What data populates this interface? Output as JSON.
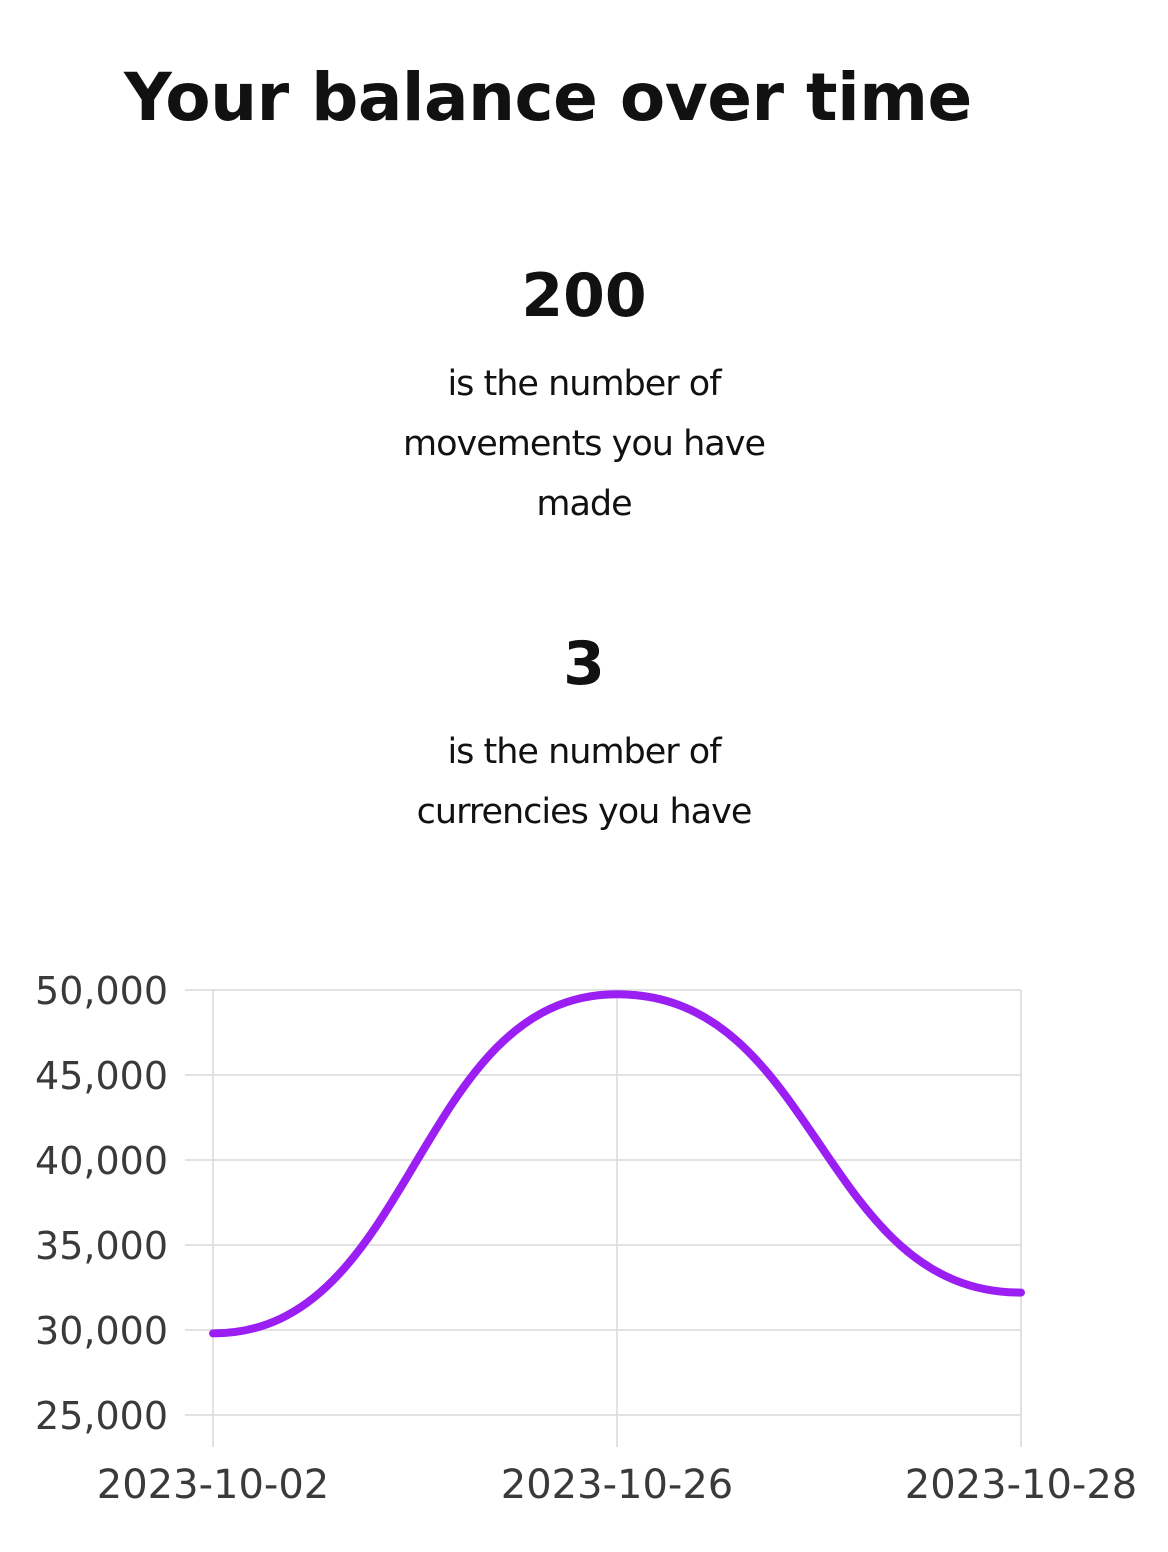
{
  "header": {
    "title": "Your balance over time"
  },
  "stats": [
    {
      "value": "200",
      "description": "is the number of movements you have made"
    },
    {
      "value": "3",
      "description": "is the number of currencies you have"
    }
  ],
  "colors": {
    "line": "#9b1ff2",
    "grid": "#d9d9d9",
    "text": "#111111"
  },
  "chart_data": {
    "type": "line",
    "title": "",
    "xlabel": "",
    "ylabel": "",
    "x": [
      "2023-10-02",
      "2023-10-26",
      "2023-10-28"
    ],
    "x_tick_labels": [
      "2023-10-02",
      "2023-10-26",
      "2023-10-28"
    ],
    "y_tick_labels": [
      "50,000",
      "45,000",
      "40,000",
      "35,000",
      "30,000",
      "25,000"
    ],
    "ylim": [
      25000,
      50000
    ],
    "y_ticks": [
      25000,
      30000,
      35000,
      40000,
      45000,
      50000
    ],
    "grid": true,
    "curve": "smooth",
    "series": [
      {
        "values": [
          29800,
          49750,
          32200
        ]
      }
    ]
  }
}
